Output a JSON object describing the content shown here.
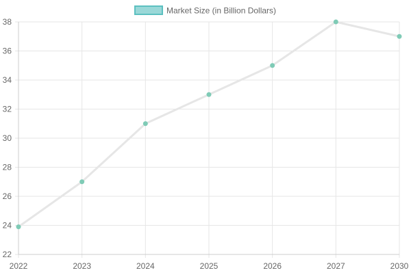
{
  "chart_data": {
    "type": "line",
    "x": [
      "2022",
      "2023",
      "2024",
      "2025",
      "2026",
      "2027",
      "2030"
    ],
    "series": [
      {
        "name": "Market Size (in Billion Dollars)",
        "values": [
          23.9,
          27,
          31,
          33,
          35,
          38,
          37
        ],
        "line_color": "#e6e6e6",
        "point_color": "#7fcbb6",
        "legend_fill": "#9ad8d8",
        "legend_border": "#5cc0c0"
      }
    ],
    "x_ticks": [
      "2022",
      "2023",
      "2024",
      "2025",
      "2026",
      "2027",
      "2030"
    ],
    "y_ticks": [
      "22",
      "24",
      "26",
      "28",
      "30",
      "32",
      "34",
      "36",
      "38"
    ],
    "ylim": [
      22,
      38
    ],
    "grid": true,
    "legend_position": "top-center",
    "colors": {
      "grid": "#e6e6e6",
      "axis": "#cccccc",
      "tick_text": "#666666"
    }
  }
}
